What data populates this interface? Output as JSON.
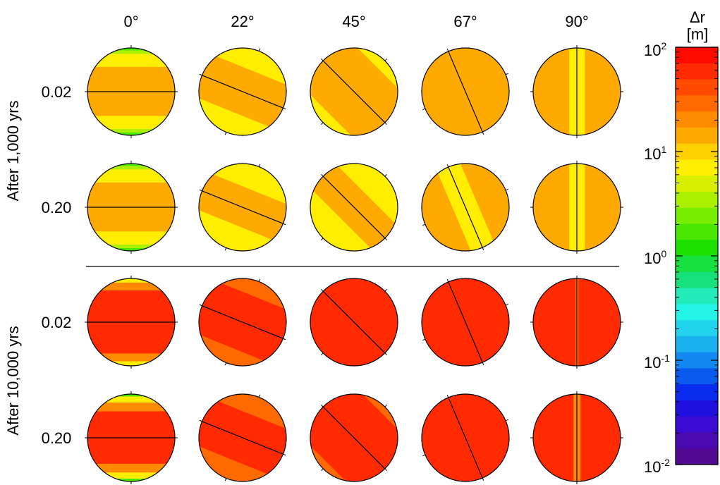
{
  "columns": [
    "0°",
    "22°",
    "45°",
    "67°",
    "90°"
  ],
  "row_labels": [
    "0.02",
    "0.20",
    "0.02",
    "0.20"
  ],
  "group_labels": [
    "After 1,000 yrs",
    "After 10,000 yrs"
  ],
  "colorbar": {
    "title_line1": "Δr",
    "title_line2": "[m]",
    "scale": "log",
    "range": [
      0.01,
      100
    ],
    "ticks": [
      {
        "base": "10",
        "exp": "2"
      },
      {
        "base": "10",
        "exp": "1"
      },
      {
        "base": "10",
        "exp": "0"
      },
      {
        "base": "10",
        "exp": "-1"
      },
      {
        "base": "10",
        "exp": "-2"
      }
    ],
    "colors_top_to_bottom": [
      "#ff0a00",
      "#ff2a00",
      "#ff4a00",
      "#ff6a00",
      "#ff8a00",
      "#ffaa00",
      "#ffd000",
      "#ffee00",
      "#d8f000",
      "#aaf000",
      "#7aee00",
      "#4ae800",
      "#1ee000",
      "#16e040",
      "#18e07a",
      "#22eab8",
      "#22f4e8",
      "#22d4f0",
      "#1ab0f0",
      "#1288f0",
      "#0a5af0",
      "#0a2cf0",
      "#2010e0",
      "#3a0ad0",
      "#4a08b0",
      "#520890"
    ]
  },
  "panels": [
    [
      {
        "angle": 0,
        "bands": [
          [
            "#4ae800",
            0,
            0.03
          ],
          [
            "#aaf000",
            0.03,
            0.07
          ],
          [
            "#ffee00",
            0.07,
            0.22
          ],
          [
            "#ffaa00",
            0.22,
            0.78
          ],
          [
            "#ffee00",
            0.78,
            0.93
          ],
          [
            "#aaf000",
            0.93,
            0.97
          ],
          [
            "#4ae800",
            0.97,
            1
          ]
        ]
      },
      {
        "angle": 22,
        "bands": [
          [
            "#ffee00",
            0,
            0.24
          ],
          [
            "#ffaa00",
            0.24,
            0.76
          ],
          [
            "#ffee00",
            0.76,
            1
          ]
        ]
      },
      {
        "angle": 45,
        "bands": [
          [
            "#ffee00",
            0,
            0.12
          ],
          [
            "#ffaa00",
            0.12,
            0.88
          ],
          [
            "#ffee00",
            0.88,
            1
          ]
        ]
      },
      {
        "angle": 67,
        "bands": [
          [
            "#ffaa00",
            0,
            1
          ]
        ]
      },
      {
        "angle": 90,
        "bands": [
          [
            "#ffaa00",
            0,
            0.41
          ],
          [
            "#ffee00",
            0.41,
            0.59
          ],
          [
            "#ffaa00",
            0.59,
            1
          ]
        ]
      }
    ],
    [
      {
        "angle": 0,
        "bands": [
          [
            "#4ae800",
            0,
            0.03
          ],
          [
            "#aaf000",
            0.03,
            0.07
          ],
          [
            "#ffee00",
            0.07,
            0.22
          ],
          [
            "#ffaa00",
            0.22,
            0.78
          ],
          [
            "#ffee00",
            0.78,
            0.93
          ],
          [
            "#aaf000",
            0.93,
            0.97
          ],
          [
            "#4ae800",
            0.97,
            1
          ]
        ]
      },
      {
        "angle": 22,
        "bands": [
          [
            "#ffee00",
            0,
            0.28
          ],
          [
            "#ffaa00",
            0.28,
            0.72
          ],
          [
            "#ffee00",
            0.72,
            1
          ]
        ]
      },
      {
        "angle": 45,
        "bands": [
          [
            "#ffee00",
            0,
            0.3
          ],
          [
            "#ffaa00",
            0.3,
            0.7
          ],
          [
            "#ffee00",
            0.7,
            1
          ]
        ]
      },
      {
        "angle": 67,
        "bands": [
          [
            "#ffaa00",
            0,
            0.36
          ],
          [
            "#ffee00",
            0.36,
            0.64
          ],
          [
            "#ffaa00",
            0.64,
            1
          ]
        ]
      },
      {
        "angle": 90,
        "bands": [
          [
            "#ffaa00",
            0,
            0.41
          ],
          [
            "#ffee00",
            0.41,
            0.59
          ],
          [
            "#ffaa00",
            0.59,
            1
          ]
        ]
      }
    ],
    [
      {
        "angle": 0,
        "bands": [
          [
            "#ffee00",
            0,
            0.05
          ],
          [
            "#ff8a00",
            0.05,
            0.14
          ],
          [
            "#ff2a00",
            0.14,
            0.86
          ],
          [
            "#ff8a00",
            0.86,
            0.95
          ],
          [
            "#ffee00",
            0.95,
            1
          ]
        ]
      },
      {
        "angle": 22,
        "bands": [
          [
            "#ff6a00",
            0,
            0.18
          ],
          [
            "#ff2a00",
            0.18,
            0.82
          ],
          [
            "#ff6a00",
            0.82,
            1
          ]
        ]
      },
      {
        "angle": 45,
        "bands": [
          [
            "#ff2a00",
            0,
            1
          ]
        ]
      },
      {
        "angle": 67,
        "bands": [
          [
            "#ff2a00",
            0,
            1
          ]
        ]
      },
      {
        "angle": 90,
        "bands": [
          [
            "#ff2a00",
            0,
            0.485
          ],
          [
            "#ff8a00",
            0.485,
            0.515
          ],
          [
            "#ff2a00",
            0.515,
            1
          ]
        ]
      }
    ],
    [
      {
        "angle": 0,
        "bands": [
          [
            "#4ae800",
            0,
            0.03
          ],
          [
            "#ffee00",
            0.03,
            0.1
          ],
          [
            "#ff8a00",
            0.1,
            0.2
          ],
          [
            "#ff2a00",
            0.2,
            0.8
          ],
          [
            "#ff8a00",
            0.8,
            0.9
          ],
          [
            "#ffee00",
            0.9,
            0.97
          ],
          [
            "#4ae800",
            0.97,
            1
          ]
        ]
      },
      {
        "angle": 22,
        "bands": [
          [
            "#ff6a00",
            0,
            0.22
          ],
          [
            "#ff2a00",
            0.22,
            0.78
          ],
          [
            "#ff6a00",
            0.78,
            1
          ]
        ]
      },
      {
        "angle": 45,
        "bands": [
          [
            "#ff6a00",
            0,
            0.08
          ],
          [
            "#ff2a00",
            0.08,
            0.92
          ],
          [
            "#ff6a00",
            0.92,
            1
          ]
        ]
      },
      {
        "angle": 67,
        "bands": [
          [
            "#ff2a00",
            0,
            1
          ]
        ]
      },
      {
        "angle": 90,
        "bands": [
          [
            "#ff2a00",
            0,
            0.46
          ],
          [
            "#ff8a00",
            0.46,
            0.54
          ],
          [
            "#ff2a00",
            0.54,
            1
          ]
        ]
      }
    ]
  ]
}
